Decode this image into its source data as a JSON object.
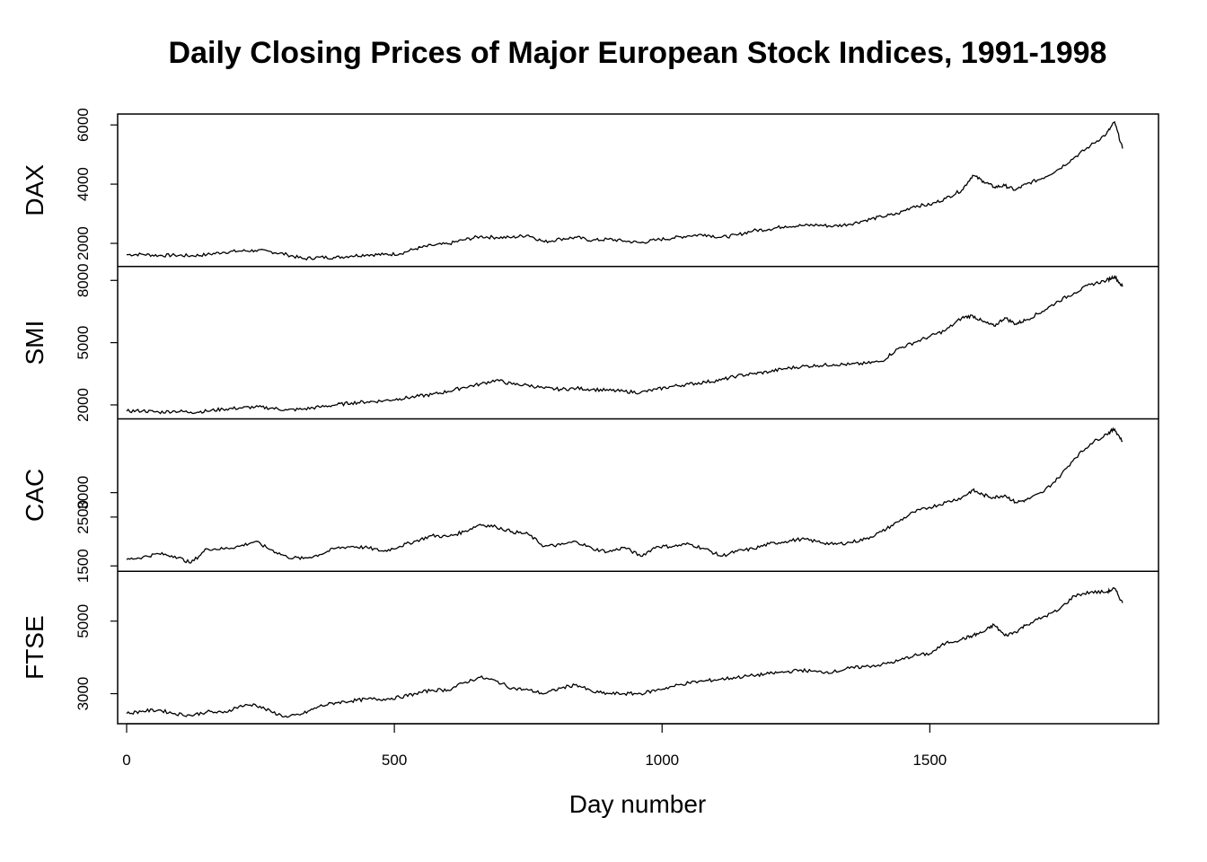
{
  "chart_data": {
    "type": "line",
    "title": "Daily Closing Prices of Major European Stock Indices, 1991-1998",
    "xlabel": "Day number",
    "xlim": [
      0,
      1860
    ],
    "xticks": [
      0,
      500,
      1000,
      1500
    ],
    "x": [
      0,
      30,
      60,
      90,
      120,
      150,
      180,
      210,
      240,
      270,
      300,
      330,
      360,
      390,
      420,
      450,
      480,
      510,
      540,
      570,
      600,
      630,
      660,
      690,
      720,
      750,
      780,
      810,
      840,
      870,
      900,
      930,
      960,
      990,
      1020,
      1050,
      1080,
      1110,
      1140,
      1170,
      1200,
      1230,
      1260,
      1290,
      1320,
      1350,
      1380,
      1410,
      1440,
      1470,
      1500,
      1530,
      1560,
      1580,
      1600,
      1620,
      1640,
      1660,
      1680,
      1710,
      1740,
      1770,
      1800,
      1830,
      1845,
      1860
    ],
    "grid": false,
    "legend": "none",
    "series": [
      {
        "name": "DAX",
        "yticks": [
          2000,
          4000,
          6000
        ],
        "ylim": [
          1402,
          6186
        ],
        "values": [
          1620,
          1630,
          1590,
          1600,
          1580,
          1620,
          1700,
          1740,
          1760,
          1720,
          1620,
          1480,
          1530,
          1520,
          1580,
          1620,
          1620,
          1650,
          1820,
          1930,
          1980,
          2120,
          2230,
          2200,
          2200,
          2280,
          2050,
          2150,
          2200,
          2100,
          2140,
          2080,
          2020,
          2120,
          2180,
          2260,
          2300,
          2200,
          2280,
          2430,
          2480,
          2580,
          2600,
          2620,
          2580,
          2650,
          2780,
          2900,
          3000,
          3260,
          3300,
          3520,
          3800,
          4300,
          4100,
          3900,
          3950,
          3800,
          4000,
          4200,
          4500,
          4900,
          5300,
          5700,
          6100,
          5200
        ]
      },
      {
        "name": "SMI",
        "yticks": [
          2000,
          5000,
          8000
        ],
        "ylim": [
          1587,
          8412
        ],
        "values": [
          1700,
          1720,
          1650,
          1700,
          1650,
          1700,
          1800,
          1850,
          1900,
          1850,
          1750,
          1800,
          1900,
          2000,
          2100,
          2150,
          2200,
          2300,
          2400,
          2500,
          2650,
          2850,
          3000,
          3200,
          3000,
          2950,
          2800,
          2750,
          2800,
          2750,
          2700,
          2650,
          2600,
          2750,
          2900,
          3000,
          3100,
          3200,
          3400,
          3500,
          3600,
          3750,
          3850,
          3900,
          3950,
          3950,
          4000,
          4100,
          4700,
          5000,
          5300,
          5600,
          6200,
          6300,
          6000,
          5800,
          6200,
          5900,
          6100,
          6500,
          7000,
          7400,
          7800,
          8000,
          8200,
          7700
        ]
      },
      {
        "name": "CAC",
        "yticks": [
          1500,
          2500,
          3000
        ],
        "ylim": [
          1500,
          4400
        ],
        "values": [
          1630,
          1680,
          1750,
          1700,
          1560,
          1850,
          1850,
          1900,
          2000,
          1830,
          1680,
          1650,
          1730,
          1860,
          1900,
          1870,
          1800,
          1900,
          2010,
          2120,
          2100,
          2200,
          2350,
          2300,
          2200,
          2150,
          1900,
          1930,
          2000,
          1850,
          1790,
          1880,
          1700,
          1900,
          1900,
          1950,
          1850,
          1700,
          1800,
          1850,
          1950,
          2000,
          2050,
          2000,
          1940,
          1980,
          2050,
          2200,
          2400,
          2600,
          2700,
          2800,
          2900,
          3050,
          2950,
          2900,
          2950,
          2800,
          2850,
          3000,
          3300,
          3700,
          4000,
          4200,
          4300,
          4050
        ]
      },
      {
        "name": "FTSE",
        "yticks": [
          3000,
          5000
        ],
        "ylim": [
          2320,
          6225
        ],
        "values": [
          2450,
          2520,
          2550,
          2450,
          2400,
          2500,
          2470,
          2650,
          2700,
          2500,
          2350,
          2450,
          2650,
          2750,
          2800,
          2850,
          2850,
          2900,
          3000,
          3100,
          3100,
          3300,
          3450,
          3350,
          3150,
          3100,
          3000,
          3150,
          3250,
          3050,
          3000,
          3000,
          3000,
          3100,
          3200,
          3300,
          3350,
          3400,
          3450,
          3500,
          3550,
          3600,
          3650,
          3600,
          3600,
          3700,
          3750,
          3800,
          3900,
          4050,
          4100,
          4400,
          4500,
          4600,
          4700,
          4900,
          4600,
          4700,
          4900,
          5100,
          5300,
          5700,
          5800,
          5800,
          5900,
          5500
        ]
      }
    ]
  }
}
